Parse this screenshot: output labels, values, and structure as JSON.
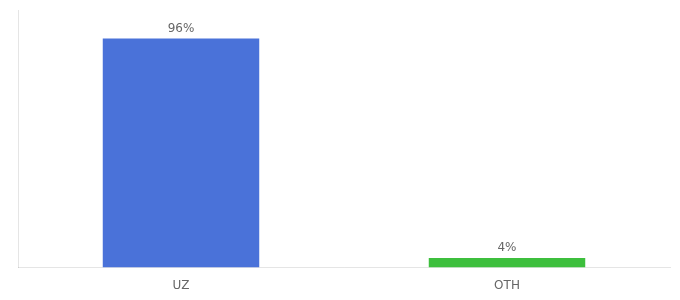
{
  "chart_data": {
    "type": "bar",
    "categories": [
      "UZ",
      "OTH"
    ],
    "values": [
      96,
      4
    ],
    "value_labels": [
      "96%",
      "4%"
    ],
    "colors": [
      "#4a72d9",
      "#3dbf3d"
    ],
    "ylim": [
      0,
      108
    ],
    "data_labels": true,
    "tick_labels": "x",
    "grid": false
  }
}
